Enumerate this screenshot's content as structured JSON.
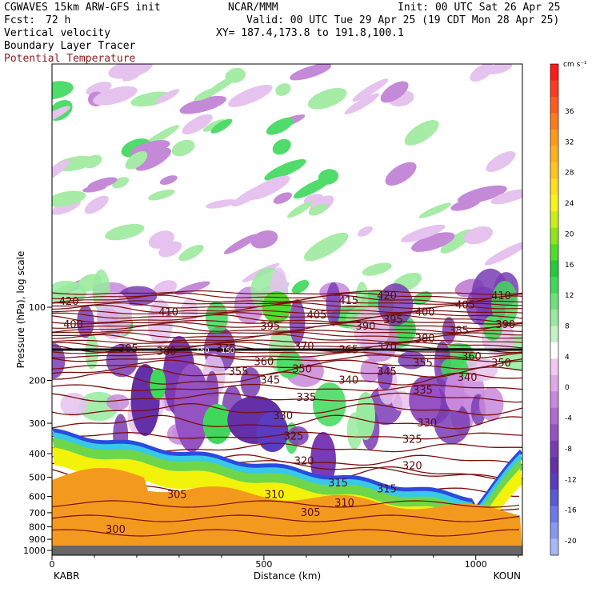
{
  "header": {
    "model": "CGWAVES 15km ARW-GFS init",
    "org": "NCAR/MMM",
    "init": "Init: 00 UTC Sat 26 Apr 25",
    "fcst_label": "Fcst:",
    "fcst_value": "72 h",
    "valid": "Valid: 00 UTC Tue 29 Apr 25 (19 CDT Mon 28 Apr 25)",
    "field1": "Vertical velocity",
    "field2": "Boundary Layer Tracer",
    "field3": "Potential Temperature",
    "xy": "XY= 187.4,173.8 to 191.8,100.1"
  },
  "colors": {
    "theta_line": "#7a0e0e",
    "terrain": "#f39a1e",
    "tracer_yellow": "#f2f20a",
    "tracer_green": "#6ed64a",
    "tracer_blue": "#2a4be0"
  },
  "chart_data": {
    "type": "heatmap",
    "ylabel": "Pressure (hPa), log scale",
    "xlabel": "Distance (km)",
    "x_ticks": [
      "0",
      "500",
      "1000"
    ],
    "x_range": [
      0,
      1110
    ],
    "y_ticks": [
      "100",
      "200",
      "300",
      "400",
      "500",
      "600",
      "700",
      "800",
      "900",
      "1000"
    ],
    "y_scale": "log",
    "endpoints": {
      "left": "KABR",
      "right": "KOUN"
    },
    "colorbar": {
      "unit": "cm s⁻¹",
      "ticks": [
        "36",
        "32",
        "28",
        "24",
        "20",
        "16",
        "12",
        "8",
        "4",
        "0",
        "-4",
        "-8",
        "-12",
        "-16",
        "-20"
      ],
      "colors": [
        "#ff1a1a",
        "#ff3b1f",
        "#ff5a1f",
        "#ff7a1f",
        "#ff9a1f",
        "#ffb21f",
        "#ffc41f",
        "#ffdf1f",
        "#f5f51a",
        "#c8f01a",
        "#8ee61a",
        "#4fdc2a",
        "#25c93a",
        "#3fd85a",
        "#6de27a",
        "#98ea9e",
        "#c4f2c4",
        "#ffffff",
        "#f0c8f0",
        "#e0a8e8",
        "#c888dc",
        "#b06ad0",
        "#9452c2",
        "#7a3cb4",
        "#6430a8",
        "#5a3cc0",
        "#5a5ad8",
        "#6e78ea",
        "#8898f2",
        "#a8b8f8"
      ]
    },
    "contour_labels": [
      {
        "text": "420",
        "x": 40,
        "p": 95
      },
      {
        "text": "410",
        "x": 275,
        "p": 105
      },
      {
        "text": "400",
        "x": 50,
        "p": 118
      },
      {
        "text": "385",
        "x": 180,
        "p": 148
      },
      {
        "text": "380",
        "x": 270,
        "p": 152
      },
      {
        "text": "375",
        "x": 410,
        "p": 148
      },
      {
        "text": "395",
        "x": 515,
        "p": 120
      },
      {
        "text": "405",
        "x": 625,
        "p": 108
      },
      {
        "text": "415",
        "x": 700,
        "p": 94
      },
      {
        "text": "420",
        "x": 790,
        "p": 90
      },
      {
        "text": "390",
        "x": 740,
        "p": 120
      },
      {
        "text": "395",
        "x": 805,
        "p": 113
      },
      {
        "text": "400",
        "x": 880,
        "p": 105
      },
      {
        "text": "405",
        "x": 975,
        "p": 98
      },
      {
        "text": "410",
        "x": 1060,
        "p": 90
      },
      {
        "text": "370",
        "x": 595,
        "p": 145
      },
      {
        "text": "365",
        "x": 700,
        "p": 150
      },
      {
        "text": "370",
        "x": 790,
        "p": 146
      },
      {
        "text": "380",
        "x": 880,
        "p": 135
      },
      {
        "text": "385",
        "x": 960,
        "p": 125
      },
      {
        "text": "390",
        "x": 1070,
        "p": 118
      },
      {
        "text": "360",
        "x": 500,
        "p": 168
      },
      {
        "text": "355",
        "x": 440,
        "p": 185
      },
      {
        "text": "350",
        "x": 590,
        "p": 180
      },
      {
        "text": "345",
        "x": 515,
        "p": 200
      },
      {
        "text": "340",
        "x": 700,
        "p": 200
      },
      {
        "text": "345",
        "x": 790,
        "p": 185
      },
      {
        "text": "355",
        "x": 875,
        "p": 170
      },
      {
        "text": "360",
        "x": 990,
        "p": 160
      },
      {
        "text": "350",
        "x": 1060,
        "p": 170
      },
      {
        "text": "340",
        "x": 980,
        "p": 195
      },
      {
        "text": "335",
        "x": 600,
        "p": 235
      },
      {
        "text": "335",
        "x": 875,
        "p": 220
      },
      {
        "text": "330",
        "x": 545,
        "p": 280
      },
      {
        "text": "330",
        "x": 885,
        "p": 300
      },
      {
        "text": "325",
        "x": 570,
        "p": 340
      },
      {
        "text": "325",
        "x": 850,
        "p": 350
      },
      {
        "text": "320",
        "x": 595,
        "p": 430
      },
      {
        "text": "320",
        "x": 850,
        "p": 450
      },
      {
        "text": "315",
        "x": 675,
        "p": 530
      },
      {
        "text": "315",
        "x": 790,
        "p": 560
      },
      {
        "text": "305",
        "x": 295,
        "p": 590
      },
      {
        "text": "310",
        "x": 525,
        "p": 590
      },
      {
        "text": "310",
        "x": 690,
        "p": 640
      },
      {
        "text": "305",
        "x": 610,
        "p": 700
      },
      {
        "text": "300",
        "x": 150,
        "p": 820
      }
    ],
    "tropopause_label": {
      "text": "150",
      "x": 355,
      "p": 153
    },
    "tropopause_label2": {
      "text": "150",
      "x": 415,
      "p": 153
    }
  }
}
